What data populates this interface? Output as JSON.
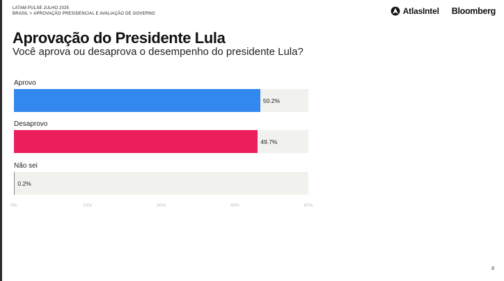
{
  "header": {
    "line1": "LATAM PULSE JULHO 2025",
    "crumb_country": "BRASIL",
    "crumb_sep": ">",
    "crumb_section": "APROVAÇÃO PRESIDENCIAL E AVALIAÇÃO DE GOVERNO"
  },
  "logos": {
    "atlas": "AtlasIntel",
    "atlas_icon": "atlas-logo-icon",
    "bloomberg": "Bloomberg"
  },
  "title": "Aprovação do Presidente Lula",
  "subtitle": "Você aprova ou desaprova o desempenho do presidente Lula?",
  "page_number": "8",
  "colors": {
    "aprovo": "#3388f0",
    "desaprovo": "#ea1f5c",
    "nao_sei": "#8a8a8a",
    "track": "#f1f1ee"
  },
  "chart_data": {
    "type": "bar",
    "orientation": "horizontal",
    "categories": [
      "Aprovo",
      "Desaprovo",
      "Não sei"
    ],
    "values": [
      50.2,
      49.7,
      0.2
    ],
    "value_labels": [
      "50.2%",
      "49.7%",
      "0.2%"
    ],
    "xlim": [
      0,
      60
    ],
    "ticks": [
      0,
      15,
      30,
      45,
      60
    ],
    "tick_labels": [
      "0%",
      "15%",
      "30%",
      "45%",
      "60%"
    ],
    "grid": false,
    "title": "Aprovação do Presidente Lula",
    "subtitle": "Você aprova ou desaprova o desempenho do presidente Lula?",
    "colors": [
      "#3388f0",
      "#ea1f5c",
      "#8a8a8a"
    ]
  }
}
